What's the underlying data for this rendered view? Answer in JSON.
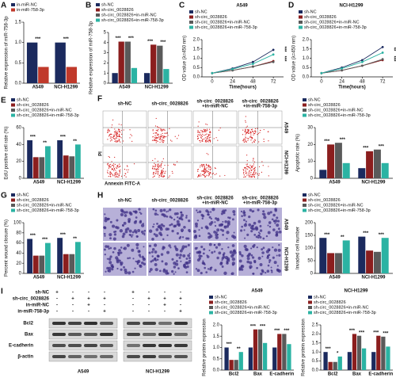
{
  "chart_data": [
    {
      "type": "bar",
      "label": "A",
      "y_label": "Relative expression of miR-758-3p",
      "categories": [
        "A549",
        "NCI-H1299"
      ],
      "series": [
        {
          "name": "in-miR-NC",
          "color": "#1b2a5e",
          "values": [
            1.0,
            1.0
          ]
        },
        {
          "name": "in-miR-758-3p",
          "color": "#c0392b",
          "values": [
            0.4,
            0.4
          ]
        }
      ],
      "ylim": [
        0,
        1.5
      ],
      "yticks": [
        {
          "value": 0,
          "label": "0.0"
        },
        {
          "value": 0.5,
          "label": "0.5"
        },
        {
          "value": 1,
          "label": "1.0"
        },
        {
          "value": 1.5,
          "label": "1.5"
        }
      ],
      "annotations": [
        "***",
        "***"
      ]
    },
    {
      "type": "bar",
      "label": "B",
      "y_label": "Relative expression of miR-758-3p",
      "categories": [
        "A549",
        "NCI-H1299"
      ],
      "series": [
        {
          "name": "sh-NC",
          "color": "#1b2a5e",
          "values": [
            1.0,
            1.0
          ]
        },
        {
          "name": "sh-circ_0028826",
          "color": "#8b1e1e",
          "values": [
            4.1,
            3.8
          ]
        },
        {
          "name": "sh-circ_0028826+in-miR-NC",
          "color": "#5a5a5a",
          "values": [
            4.1,
            3.7
          ]
        },
        {
          "name": "sh-circ_0028826+in-miR-758-3p",
          "color": "#2bb3a3",
          "values": [
            1.5,
            1.4
          ]
        }
      ],
      "ylim": [
        0,
        5
      ],
      "yticks": [
        0,
        1,
        2,
        3,
        4,
        5
      ],
      "annotations": [
        "***",
        "***",
        "***",
        "***"
      ]
    },
    {
      "type": "line",
      "label": "C",
      "title": "A549",
      "x_label": "Time(hours)",
      "y_label": "OD value (λ=450 nm)",
      "x": [
        0,
        24,
        48,
        72
      ],
      "series": [
        {
          "name": "sh-NC",
          "color": "#1b2a5e",
          "values": [
            0.2,
            0.45,
            0.8,
            1.45
          ]
        },
        {
          "name": "sh-circ_0028826",
          "color": "#8b1e1e",
          "values": [
            0.2,
            0.35,
            0.55,
            0.85
          ]
        },
        {
          "name": "sh-circ_0028826+in-miR-NC",
          "color": "#5a5a5a",
          "values": [
            0.2,
            0.35,
            0.55,
            0.8
          ]
        },
        {
          "name": "sh-circ_0028826+in-miR-758-3p",
          "color": "#2bb3a3",
          "values": [
            0.2,
            0.42,
            0.7,
            1.2
          ]
        }
      ],
      "xlim": [
        -12,
        84
      ],
      "xticks": [
        0,
        24,
        48,
        72
      ],
      "ylim": [
        0,
        2
      ],
      "yticks": [
        {
          "value": 0,
          "label": "0.0"
        },
        {
          "value": 0.5,
          "label": "0.5"
        },
        {
          "value": 1,
          "label": "1.0"
        },
        {
          "value": 1.5,
          "label": "1.5"
        },
        {
          "value": 2,
          "label": "2.0"
        }
      ],
      "annotations": [
        "***",
        "***"
      ]
    },
    {
      "type": "line",
      "label": "D",
      "title": "NCI-H1299",
      "x_label": "Time(hours)",
      "y_label": "OD value (λ=450 nm)",
      "x": [
        0,
        24,
        48,
        72
      ],
      "series": [
        {
          "name": "sh-NC",
          "color": "#1b2a5e",
          "values": [
            0.2,
            0.5,
            0.9,
            1.6
          ]
        },
        {
          "name": "sh-circ_0028826",
          "color": "#8b1e1e",
          "values": [
            0.2,
            0.35,
            0.6,
            0.9
          ]
        },
        {
          "name": "sh-circ_0028826+in-miR-NC",
          "color": "#5a5a5a",
          "values": [
            0.2,
            0.35,
            0.6,
            0.95
          ]
        },
        {
          "name": "sh-circ_0028826+in-miR-758-3p",
          "color": "#2bb3a3",
          "values": [
            0.2,
            0.45,
            0.8,
            1.3
          ]
        }
      ],
      "xlim": [
        -12,
        84
      ],
      "xticks": [
        0,
        24,
        48,
        72
      ],
      "ylim": [
        0,
        2
      ],
      "yticks": [
        {
          "value": 0,
          "label": "0.0"
        },
        {
          "value": 0.5,
          "label": "0.5"
        },
        {
          "value": 1,
          "label": "1.0"
        },
        {
          "value": 1.5,
          "label": "1.5"
        },
        {
          "value": 2,
          "label": "2.0"
        }
      ],
      "annotations": [
        "**",
        "***"
      ]
    },
    {
      "type": "bar",
      "label": "E",
      "y_label": "EdU positive cell rate (%)",
      "categories": [
        "A549",
        "NCI-H1299"
      ],
      "series": [
        {
          "name": "sh-NC",
          "color": "#1b2a5e",
          "values": [
            45,
            45
          ]
        },
        {
          "name": "sh-circ_0028826",
          "color": "#8b1e1e",
          "values": [
            25,
            27
          ]
        },
        {
          "name": "sh-circ_0028826+in-miR-NC",
          "color": "#5a5a5a",
          "values": [
            25,
            26
          ]
        },
        {
          "name": "sh-circ_0028826+in-miR-758-3p",
          "color": "#2bb3a3",
          "values": [
            38,
            40
          ]
        }
      ],
      "ylim": [
        0,
        60
      ],
      "yticks": [
        0,
        20,
        40,
        60
      ],
      "annotations": [
        "***",
        "**",
        "***",
        "**"
      ]
    },
    {
      "type": "bar",
      "y_label": "Apoptotic rate (%)",
      "categories": [
        "A549",
        "NCI-H1299"
      ],
      "series": [
        {
          "name": "sh-NC",
          "color": "#1b2a5e",
          "values": [
            5,
            6
          ]
        },
        {
          "name": "sh-circ_0028826",
          "color": "#8b1e1e",
          "values": [
            20,
            16
          ]
        },
        {
          "name": "sh-circ_0028826+in-miR-NC",
          "color": "#5a5a5a",
          "values": [
            21,
            17
          ]
        },
        {
          "name": "sh-circ_0028826+in-miR-758-3p",
          "color": "#2bb3a3",
          "values": [
            9,
            9
          ]
        }
      ],
      "ylim": [
        0,
        30
      ],
      "yticks": [
        0,
        10,
        20,
        30
      ],
      "annotations": [
        "***",
        "***",
        "***",
        "***"
      ]
    },
    {
      "type": "bar",
      "label": "G",
      "y_label": "Percent wound closure (%)",
      "categories": [
        "A549",
        "NCI-H1299"
      ],
      "series": [
        {
          "name": "sh-NC",
          "color": "#1b2a5e",
          "values": [
            68,
            70
          ]
        },
        {
          "name": "sh-circ_0028826",
          "color": "#8b1e1e",
          "values": [
            35,
            38
          ]
        },
        {
          "name": "sh-circ_0028826+in-miR-NC",
          "color": "#5a5a5a",
          "values": [
            35,
            38
          ]
        },
        {
          "name": "sh-circ_0028826+in-miR-758-3p",
          "color": "#2bb3a3",
          "values": [
            60,
            62
          ]
        }
      ],
      "ylim": [
        0,
        100
      ],
      "yticks": [
        0,
        20,
        40,
        60,
        80,
        100
      ],
      "annotations": [
        "***",
        "***",
        "***",
        "**"
      ]
    },
    {
      "type": "bar",
      "y_label": "Invaded cell number",
      "categories": [
        "A549",
        "NCI-H1299"
      ],
      "series": [
        {
          "name": "sh-NC",
          "color": "#1b2a5e",
          "values": [
            140,
            145
          ]
        },
        {
          "name": "sh-circ_0028826",
          "color": "#8b1e1e",
          "values": [
            80,
            90
          ]
        },
        {
          "name": "sh-circ_0028826+in-miR-NC",
          "color": "#5a5a5a",
          "values": [
            80,
            85
          ]
        },
        {
          "name": "sh-circ_0028826+in-miR-758-3p",
          "color": "#2bb3a3",
          "values": [
            130,
            140
          ]
        }
      ],
      "ylim": [
        0,
        200
      ],
      "yticks": [
        0,
        50,
        100,
        150,
        200
      ],
      "annotations": [
        "***",
        "**",
        "***",
        "***"
      ]
    },
    {
      "type": "bar",
      "title": "A549",
      "y_label": "Relative protein expression",
      "categories": [
        "Bcl2",
        "Bax",
        "E-cadherin"
      ],
      "series": [
        {
          "name": "sh-NC",
          "color": "#1b2a5e",
          "values": [
            1.0,
            1.0,
            1.0
          ]
        },
        {
          "name": "sh-circ_0028826",
          "color": "#8b1e1e",
          "values": [
            0.45,
            1.8,
            1.6
          ]
        },
        {
          "name": "sh-circ_0028826+in-miR-NC",
          "color": "#5a5a5a",
          "values": [
            0.45,
            1.8,
            1.6
          ]
        },
        {
          "name": "sh-circ_0028826+in-miR-758-3p",
          "color": "#2bb3a3",
          "values": [
            0.8,
            1.2,
            1.15
          ]
        }
      ],
      "ylim": [
        0,
        2
      ],
      "yticks": [
        {
          "value": 0,
          "label": "0.0"
        },
        {
          "value": 0.5,
          "label": "0.5"
        },
        {
          "value": 1,
          "label": "1.0"
        },
        {
          "value": 1.5,
          "label": "1.5"
        },
        {
          "value": 2,
          "label": "2.0"
        }
      ],
      "annotations": [
        "***",
        "**",
        "***",
        "***",
        "***",
        "***"
      ]
    },
    {
      "type": "bar",
      "title": "NCI-H1299",
      "y_label": "Relative protein expression",
      "categories": [
        "Bcl2",
        "Bax",
        "E-cadherin"
      ],
      "series": [
        {
          "name": "sh-NC",
          "color": "#1b2a5e",
          "values": [
            1.0,
            1.0,
            1.0
          ]
        },
        {
          "name": "sh-circ_0028826",
          "color": "#8b1e1e",
          "values": [
            0.45,
            2.0,
            1.9
          ]
        },
        {
          "name": "sh-circ_0028826+in-miR-NC",
          "color": "#5a5a5a",
          "values": [
            0.45,
            1.9,
            1.85
          ]
        },
        {
          "name": "sh-circ_0028826+in-miR-758-3p",
          "color": "#2bb3a3",
          "values": [
            0.75,
            1.2,
            1.3
          ]
        }
      ],
      "ylim": [
        0,
        2.5
      ],
      "yticks": [
        {
          "value": 0,
          "label": "0.0"
        },
        {
          "value": 0.5,
          "label": "0.5"
        },
        {
          "value": 1,
          "label": "1.0"
        },
        {
          "value": 1.5,
          "label": "1.5"
        },
        {
          "value": 2,
          "label": "2.0"
        },
        {
          "value": 2.5,
          "label": "2.5"
        }
      ],
      "annotations": [
        "***",
        "*",
        "***",
        "***",
        "***",
        "***"
      ]
    }
  ],
  "flow_images": {
    "label": "F",
    "columns": [
      [
        "sh-NC"
      ],
      [
        "sh-circ_0028826"
      ],
      [
        "sh-circ_0028826",
        "+in-miR-NC"
      ],
      [
        "sh-circ_0028826",
        "+in-miR-758-3p"
      ]
    ],
    "rows": [
      "A549",
      "NCI-H1299"
    ],
    "y_axis": "PI",
    "x_axis": "Annexin FITC-A"
  },
  "invasion_images": {
    "label": "H",
    "columns": [
      [
        "sh-NC"
      ],
      [
        "sh-circ_0028826"
      ],
      [
        "sh-circ_0028826",
        "+in-miR-NC"
      ],
      [
        "sh-circ_0028826",
        "+in-miR-758-3p"
      ]
    ],
    "rows": [
      "A549",
      "NCI-H1299"
    ]
  },
  "western_blot": {
    "label": "I",
    "conditions": [
      {
        "name": "sh-NC",
        "signs": [
          "+",
          "-",
          "-",
          "-",
          "+",
          "-",
          "-",
          "-"
        ]
      },
      {
        "name": "sh-circ_0028826",
        "signs": [
          "-",
          "+",
          "+",
          "+",
          "-",
          "+",
          "+",
          "+"
        ]
      },
      {
        "name": "in-miR-NC",
        "signs": [
          "-",
          "-",
          "+",
          "-",
          "-",
          "-",
          "+",
          "-"
        ]
      },
      {
        "name": "in-miR-758-3p",
        "signs": [
          "-",
          "-",
          "-",
          "+",
          "-",
          "-",
          "-",
          "+"
        ]
      }
    ],
    "proteins": [
      "Bcl2",
      "Bax",
      "E-cadherin",
      "β-actin"
    ],
    "cells": [
      "A549",
      "NCI-H1299"
    ]
  }
}
